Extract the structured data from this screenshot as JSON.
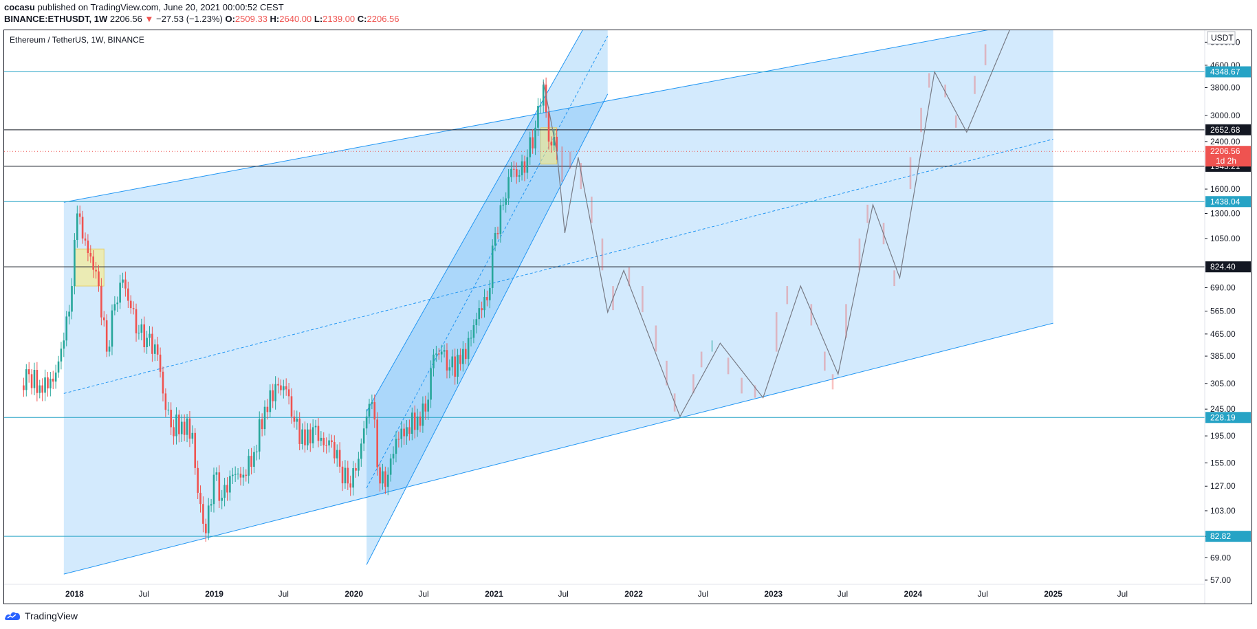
{
  "header": {
    "author": "cocasu",
    "published_text": "published on TradingView.com, June 20, 2021 00:00:52 CEST",
    "symbol": "BINANCE:ETHUSDT, 1W",
    "last": "2206.56",
    "arrow": "▼",
    "change": "−27.53 (−1.23%)",
    "o_label": "O:",
    "o_value": "2509.33",
    "h_label": "H:",
    "h_value": "2640.00",
    "l_label": "L:",
    "l_value": "2139.00",
    "c_label": "C:",
    "c_value": "2206.56"
  },
  "footer": {
    "brand": "TradingView"
  },
  "chart_data": {
    "type": "candlestick",
    "title": "Ethereum / TetherUS, 1W, BINANCE",
    "y_scale": "log",
    "currency_label": "USDT",
    "ylim": [
      55,
      6200
    ],
    "xlim": [
      "2017-07-01",
      "2026-02-01"
    ],
    "x_ticks": [
      "2018",
      "Jul",
      "2019",
      "Jul",
      "2020",
      "Jul",
      "2021",
      "Jul",
      "2022",
      "Jul",
      "2023",
      "Jul",
      "2024",
      "Jul",
      "2025",
      "Jul"
    ],
    "x_tick_dates": [
      "2018-01-01",
      "2018-07-01",
      "2019-01-01",
      "2019-07-01",
      "2020-01-01",
      "2020-07-01",
      "2021-01-01",
      "2021-07-01",
      "2022-01-01",
      "2022-07-01",
      "2023-01-01",
      "2023-07-01",
      "2024-01-01",
      "2024-07-01",
      "2025-01-01",
      "2025-07-01"
    ],
    "y_ticks": [
      57,
      69,
      82.82,
      103,
      127,
      155,
      195,
      245,
      305,
      385,
      465,
      565,
      690,
      1050,
      1300,
      1600,
      2400,
      3000,
      3800,
      4600,
      5600
    ],
    "horizontal_levels": [
      {
        "value": 4348.67,
        "label": "4348.67",
        "color": "#26a3c5"
      },
      {
        "value": 2652.68,
        "label": "2652.68",
        "color": "#131722"
      },
      {
        "value": 1943.21,
        "label": "1943.21",
        "color": "#131722"
      },
      {
        "value": 1438.04,
        "label": "1438.04",
        "color": "#26a3c5"
      },
      {
        "value": 824.4,
        "label": "824.40",
        "color": "#131722"
      },
      {
        "value": 228.19,
        "label": "228.19",
        "color": "#26a3c5"
      },
      {
        "value": 82.82,
        "label": "82.82",
        "color": "#26a3c5"
      }
    ],
    "last_price": {
      "value": 2206.56,
      "label": "2206.56",
      "countdown": "1d 2h",
      "color": "#ef5350"
    },
    "close_series": [
      [
        "2017-08-14",
        300
      ],
      [
        "2017-09-04",
        330
      ],
      [
        "2017-10-02",
        300
      ],
      [
        "2017-11-06",
        310
      ],
      [
        "2017-12-04",
        440
      ],
      [
        "2017-12-25",
        700
      ],
      [
        "2018-01-08",
        1300
      ],
      [
        "2018-01-22",
        1050
      ],
      [
        "2018-02-12",
        900
      ],
      [
        "2018-03-05",
        700
      ],
      [
        "2018-03-26",
        400
      ],
      [
        "2018-04-16",
        600
      ],
      [
        "2018-05-07",
        740
      ],
      [
        "2018-05-28",
        580
      ],
      [
        "2018-06-18",
        470
      ],
      [
        "2018-07-09",
        450
      ],
      [
        "2018-08-06",
        390
      ],
      [
        "2018-08-20",
        280
      ],
      [
        "2018-09-10",
        210
      ],
      [
        "2018-10-08",
        220
      ],
      [
        "2018-11-05",
        200
      ],
      [
        "2018-11-19",
        120
      ],
      [
        "2018-12-10",
        85
      ],
      [
        "2018-12-31",
        140
      ],
      [
        "2019-01-21",
        115
      ],
      [
        "2019-02-18",
        140
      ],
      [
        "2019-03-18",
        140
      ],
      [
        "2019-04-15",
        170
      ],
      [
        "2019-05-13",
        250
      ],
      [
        "2019-06-17",
        300
      ],
      [
        "2019-07-08",
        290
      ],
      [
        "2019-07-29",
        220
      ],
      [
        "2019-08-26",
        180
      ],
      [
        "2019-09-16",
        210
      ],
      [
        "2019-10-14",
        180
      ],
      [
        "2019-11-04",
        185
      ],
      [
        "2019-11-25",
        150
      ],
      [
        "2019-12-16",
        130
      ],
      [
        "2020-01-06",
        145
      ],
      [
        "2020-02-03",
        230
      ],
      [
        "2020-02-17",
        260
      ],
      [
        "2020-03-09",
        130
      ],
      [
        "2020-03-30",
        140
      ],
      [
        "2020-04-20",
        190
      ],
      [
        "2020-05-18",
        210
      ],
      [
        "2020-06-15",
        230
      ],
      [
        "2020-07-06",
        240
      ],
      [
        "2020-07-27",
        390
      ],
      [
        "2020-08-17",
        400
      ],
      [
        "2020-09-07",
        350
      ],
      [
        "2020-10-05",
        360
      ],
      [
        "2020-11-02",
        450
      ],
      [
        "2020-11-23",
        580
      ],
      [
        "2020-12-14",
        620
      ],
      [
        "2021-01-04",
        1100
      ],
      [
        "2021-01-25",
        1400
      ],
      [
        "2021-02-15",
        1900
      ],
      [
        "2021-03-08",
        1800
      ],
      [
        "2021-03-29",
        2100
      ],
      [
        "2021-04-19",
        2700
      ],
      [
        "2021-05-10",
        3900
      ],
      [
        "2021-05-24",
        2400
      ],
      [
        "2021-06-07",
        2500
      ],
      [
        "2021-06-14",
        2206.56
      ]
    ],
    "projection_path": [
      [
        "2021-05-10",
        4000
      ],
      [
        "2021-06-14",
        2206.56
      ],
      [
        "2021-07-05",
        1100
      ],
      [
        "2021-08-09",
        2100
      ],
      [
        "2021-10-25",
        560
      ],
      [
        "2021-12-06",
        800
      ],
      [
        "2022-05-02",
        230
      ],
      [
        "2022-08-15",
        430
      ],
      [
        "2022-12-05",
        270
      ],
      [
        "2023-03-13",
        700
      ],
      [
        "2023-06-19",
        330
      ],
      [
        "2023-09-18",
        1400
      ],
      [
        "2023-11-27",
        750
      ],
      [
        "2024-02-26",
        4350
      ],
      [
        "2024-05-20",
        2600
      ],
      [
        "2024-09-09",
        6200
      ]
    ],
    "ghost_bars": [
      [
        "2021-06-28",
        1700,
        2300
      ],
      [
        "2021-07-19",
        1900,
        2200
      ],
      [
        "2021-08-16",
        1600,
        2000
      ],
      [
        "2021-09-13",
        1200,
        1500
      ],
      [
        "2021-10-11",
        800,
        1050
      ],
      [
        "2021-11-08",
        570,
        700
      ],
      [
        "2021-12-20",
        700,
        820
      ],
      [
        "2022-01-24",
        560,
        700
      ],
      [
        "2022-02-28",
        400,
        500
      ],
      [
        "2022-03-28",
        300,
        370
      ],
      [
        "2022-04-18",
        240,
        280
      ],
      [
        "2022-06-06",
        280,
        330
      ],
      [
        "2022-06-27",
        350,
        400
      ],
      [
        "2022-07-25",
        400,
        440
      ],
      [
        "2022-09-05",
        330,
        380
      ],
      [
        "2022-10-10",
        280,
        320
      ],
      [
        "2022-11-14",
        270,
        300
      ],
      [
        "2023-01-09",
        400,
        560
      ],
      [
        "2023-02-06",
        600,
        700
      ],
      [
        "2023-04-10",
        500,
        600
      ],
      [
        "2023-05-15",
        340,
        400
      ],
      [
        "2023-06-05",
        290,
        330
      ],
      [
        "2023-07-10",
        450,
        600
      ],
      [
        "2023-08-14",
        800,
        1050
      ],
      [
        "2023-09-04",
        1200,
        1400
      ],
      [
        "2023-10-16",
        1000,
        1200
      ],
      [
        "2023-11-13",
        700,
        800
      ],
      [
        "2023-12-25",
        1600,
        2100
      ],
      [
        "2024-01-22",
        2600,
        3200
      ],
      [
        "2024-02-12",
        3800,
        4300
      ],
      [
        "2024-03-25",
        3500,
        3900
      ],
      [
        "2024-04-22",
        2700,
        3000
      ],
      [
        "2024-06-10",
        3600,
        4200
      ],
      [
        "2024-07-08",
        4600,
        5500
      ]
    ],
    "parallel_channel_main": {
      "upper": [
        [
          "2017-12-04",
          1430
        ],
        [
          "2024-08-05",
          6300
        ]
      ],
      "lower": [
        [
          "2017-12-04",
          60
        ],
        [
          "2025-01-01",
          510
        ]
      ],
      "mid": [
        [
          "2017-12-04",
          280
        ],
        [
          "2025-01-01",
          2450
        ]
      ],
      "end_date": "2025-01-01"
    },
    "parallel_channel_steep": {
      "upper": [
        [
          "2020-02-03",
          240
        ],
        [
          "2021-04-26",
          4150
        ],
        [
          "2021-08-23",
          6300
        ]
      ],
      "lower": [
        [
          "2020-02-03",
          65
        ],
        [
          "2021-10-25",
          3600
        ]
      ],
      "mid": [
        [
          "2020-02-03",
          125
        ],
        [
          "2021-10-25",
          5900
        ]
      ],
      "end_date": "2021-10-25"
    },
    "highlight_boxes": [
      {
        "from": "2018-01-01",
        "to": "2018-03-19",
        "hi": 960,
        "lo": 700
      },
      {
        "from": "2021-05-03",
        "to": "2021-06-14",
        "hi": 2700,
        "lo": 1980
      }
    ]
  }
}
